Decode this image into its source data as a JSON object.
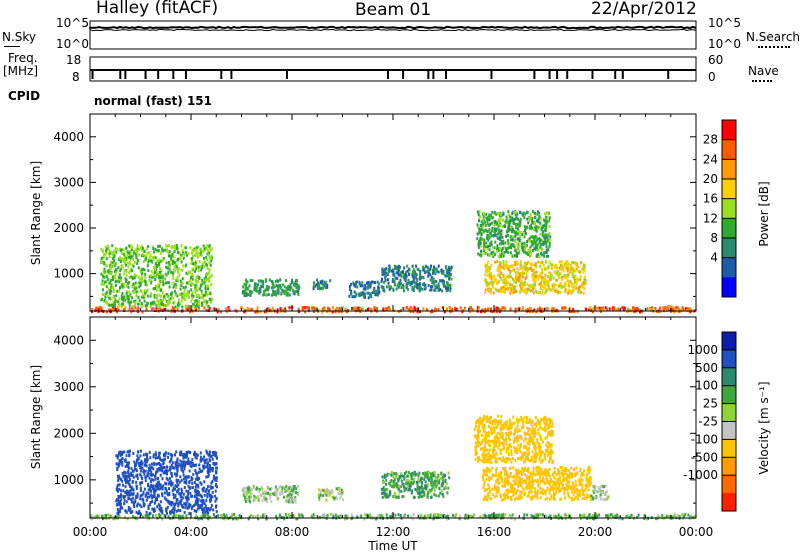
{
  "header": {
    "title": "Halley (fitACF)",
    "beam": "Beam 01",
    "date": "22/Apr/2012"
  },
  "noise_panel": {
    "left_label": "N.Sky",
    "right_label": "N.Search",
    "left_ticks": [
      "10^5",
      "10^0"
    ],
    "right_ticks": [
      "10^5",
      "10^0"
    ]
  },
  "freq_panel": {
    "left_label_1": "Freq.",
    "left_label_2": "[MHz]",
    "left_ticks": [
      "18",
      "8"
    ],
    "right_ticks": [
      "60",
      "0"
    ],
    "right_label": "Nave"
  },
  "cpid": {
    "label": "CPID",
    "value": "normal (fast) 151"
  },
  "x_axis": {
    "label": "Time UT",
    "ticks": [
      "00:00",
      "04:00",
      "08:00",
      "12:00",
      "16:00",
      "20:00",
      "00:00"
    ]
  },
  "y_axis": {
    "label": "Slant Range [km]",
    "ticks": [
      "1000",
      "2000",
      "3000",
      "4000"
    ]
  },
  "power_scale": {
    "label": "Power [dB]",
    "ticks": [
      "28",
      "24",
      "20",
      "16",
      "12",
      "8",
      "4"
    ],
    "colors": [
      "#ff0000",
      "#ff5a00",
      "#ff9b00",
      "#ffd000",
      "#9be01e",
      "#2faa2f",
      "#2a8a6e",
      "#1e5aaa",
      "#0000ff"
    ]
  },
  "velocity_scale": {
    "label": "Velocity [m s⁻¹]",
    "ticks": [
      "1000",
      "500",
      "100",
      "25",
      "-25",
      "-100",
      "-500",
      "-1000"
    ],
    "colors": [
      "#0b1fa8",
      "#2050c0",
      "#2e8a6e",
      "#3fa63f",
      "#8fd33a",
      "#c4c4c4",
      "#ffc400",
      "#ff9b00",
      "#ff6a00",
      "#ff2000"
    ]
  },
  "chart_data": [
    {
      "type": "heatmap",
      "panel": "power",
      "x_range_hours": [
        0,
        24
      ],
      "y_range_km": [
        180,
        4500
      ],
      "value_unit": "dB",
      "regions": [
        {
          "t": [
            0,
            24
          ],
          "r": [
            190,
            290
          ],
          "v": 28
        },
        {
          "t": [
            0.4,
            4.8
          ],
          "r": [
            300,
            1650
          ],
          "v": 14
        },
        {
          "t": [
            6.0,
            8.3
          ],
          "r": [
            550,
            900
          ],
          "v": 10
        },
        {
          "t": [
            8.8,
            9.5
          ],
          "r": [
            700,
            900
          ],
          "v": 8
        },
        {
          "t": [
            10.2,
            11.5
          ],
          "r": [
            500,
            850
          ],
          "v": 6
        },
        {
          "t": [
            11.5,
            14.3
          ],
          "r": [
            650,
            1200
          ],
          "v": 7
        },
        {
          "t": [
            15.3,
            18.2
          ],
          "r": [
            1400,
            2400
          ],
          "v": 12
        },
        {
          "t": [
            15.6,
            19.6
          ],
          "r": [
            600,
            1300
          ],
          "v": 20
        },
        {
          "t": [
            22.5,
            23.8
          ],
          "r": [
            200,
            320
          ],
          "v": 26
        }
      ]
    },
    {
      "type": "heatmap",
      "panel": "velocity",
      "x_range_hours": [
        0,
        24
      ],
      "y_range_km": [
        180,
        4500
      ],
      "value_unit": "m/s",
      "regions": [
        {
          "t": [
            0,
            24
          ],
          "r": [
            190,
            290
          ],
          "v": 50
        },
        {
          "t": [
            1.0,
            5.0
          ],
          "r": [
            300,
            1650
          ],
          "v": 600
        },
        {
          "t": [
            6.0,
            8.2
          ],
          "r": [
            550,
            900
          ],
          "v": 0
        },
        {
          "t": [
            9.0,
            10.0
          ],
          "r": [
            600,
            850
          ],
          "v": -20
        },
        {
          "t": [
            11.5,
            14.2
          ],
          "r": [
            650,
            1200
          ],
          "v": 80
        },
        {
          "t": [
            15.2,
            18.3
          ],
          "r": [
            1400,
            2400
          ],
          "v": -300
        },
        {
          "t": [
            15.5,
            19.8
          ],
          "r": [
            600,
            1300
          ],
          "v": -250
        },
        {
          "t": [
            19.8,
            20.5
          ],
          "r": [
            600,
            900
          ],
          "v": 0
        }
      ]
    }
  ]
}
